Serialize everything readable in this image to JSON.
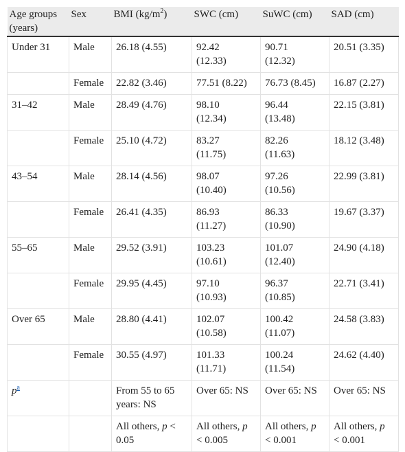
{
  "table": {
    "header": [
      "Age groups (years)",
      "Sex",
      [
        {
          "text": "BMI (kg/m"
        },
        {
          "text": "2",
          "sup": true
        },
        {
          "text": ")"
        }
      ],
      "SWC (cm)",
      "SuWC (cm)",
      "SAD (cm)"
    ],
    "rows": [
      [
        "Under 31",
        "Male",
        "26.18 (4.55)",
        "92.42 (12.33)",
        "90.71 (12.32)",
        "20.51 (3.35)"
      ],
      [
        null,
        "Female",
        "22.82 (3.46)",
        "77.51 (8.22)",
        "76.73 (8.45)",
        "16.87 (2.27)"
      ],
      [
        "31–42",
        "Male",
        "28.49 (4.76)",
        "98.10 (12.34)",
        "96.44 (13.48)",
        "22.15 (3.81)"
      ],
      [
        null,
        "Female",
        "25.10 (4.72)",
        "83.27 (11.75)",
        "82.26 (11.63)",
        "18.12 (3.48)"
      ],
      [
        "43–54",
        "Male",
        "28.14 (4.56)",
        "98.07 (10.40)",
        "97.26 (10.56)",
        "22.99 (3.81)"
      ],
      [
        null,
        "Female",
        "26.41 (4.35)",
        "86.93 (11.27)",
        "86.33 (10.90)",
        "19.67 (3.37)"
      ],
      [
        "55–65",
        "Male",
        "29.52 (3.91)",
        "103.23 (10.61)",
        "101.07 (12.40)",
        "24.90 (4.18)"
      ],
      [
        null,
        "Female",
        "29.95 (4.45)",
        "97.10 (10.93)",
        "96.37 (10.85)",
        "22.71 (3.41)"
      ],
      [
        "Over 65",
        "Male",
        "28.80 (4.41)",
        "102.07 (10.58)",
        "100.42 (11.07)",
        "24.58 (3.83)"
      ],
      [
        null,
        "Female",
        "30.55 (4.97)",
        "101.33 (11.71)",
        "100.24 (11.54)",
        "24.62 (4.40)"
      ],
      [
        [
          {
            "text": "p",
            "italic": true
          },
          {
            "text": "a",
            "sup": true,
            "link": true
          }
        ],
        null,
        "From 55 to 65 years: NS",
        "Over 65: NS",
        "Over 65: NS",
        "Over 65: NS"
      ],
      [
        null,
        null,
        [
          {
            "text": "All others, "
          },
          {
            "text": "p",
            "italic": true
          },
          {
            "text": " < 0.05"
          }
        ],
        [
          {
            "text": "All others, "
          },
          {
            "text": "p",
            "italic": true
          },
          {
            "text": " < 0.005"
          }
        ],
        [
          {
            "text": "All others, "
          },
          {
            "text": "p",
            "italic": true
          },
          {
            "text": " < 0.001"
          }
        ],
        [
          {
            "text": "All others, "
          },
          {
            "text": "p",
            "italic": true
          },
          {
            "text": " < 0.001"
          }
        ]
      ]
    ]
  }
}
